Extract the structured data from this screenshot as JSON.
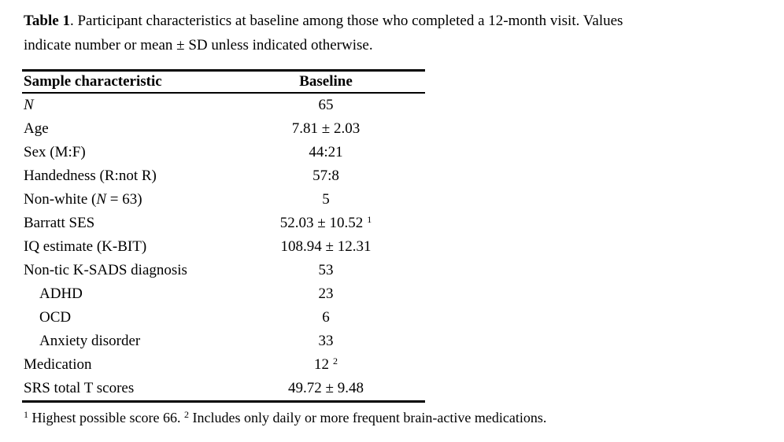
{
  "caption": {
    "label_bold": "Table 1",
    "line1_rest": ". Participant characteristics at baseline among those who completed a 12-month visit. Values",
    "line2": "indicate number or mean ± SD unless indicated otherwise."
  },
  "table": {
    "columns": {
      "characteristic": "Sample characteristic",
      "baseline": "Baseline"
    },
    "rows": [
      {
        "label": [
          {
            "t": "N",
            "i": true
          }
        ],
        "value": "65"
      },
      {
        "label": [
          {
            "t": "Age"
          }
        ],
        "value": "7.81 ± 2.03"
      },
      {
        "label": [
          {
            "t": "Sex (M:F)"
          }
        ],
        "value": "44:21"
      },
      {
        "label": [
          {
            "t": "Handedness (R:not R)"
          }
        ],
        "value": "57:8"
      },
      {
        "label": [
          {
            "t": "Non-white ("
          },
          {
            "t": "N",
            "i": true
          },
          {
            "t": " = 63)"
          }
        ],
        "value": "5"
      },
      {
        "label": [
          {
            "t": "Barratt SES"
          }
        ],
        "value": "52.03 ± 10.52",
        "value_sup": "1"
      },
      {
        "label": [
          {
            "t": "IQ estimate (K-BIT)"
          }
        ],
        "value": "108.94 ± 12.31"
      },
      {
        "label": [
          {
            "t": "Non-tic K-SADS diagnosis"
          }
        ],
        "value": "53"
      },
      {
        "label": [
          {
            "t": "ADHD"
          }
        ],
        "value": "23",
        "indent": true
      },
      {
        "label": [
          {
            "t": "OCD"
          }
        ],
        "value": "6",
        "indent": true
      },
      {
        "label": [
          {
            "t": "Anxiety disorder"
          }
        ],
        "value": "33",
        "indent": true
      },
      {
        "label": [
          {
            "t": "Medication"
          }
        ],
        "value": "12",
        "value_sup": "2"
      },
      {
        "label": [
          {
            "t": "SRS total T scores"
          }
        ],
        "value": "49.72 ± 9.48"
      }
    ]
  },
  "footnote": {
    "parts": [
      {
        "t": "1",
        "sup": true
      },
      {
        "t": " Highest possible score 66. "
      },
      {
        "t": "2",
        "sup": true
      },
      {
        "t": " Includes only daily or more frequent brain-active medications."
      }
    ]
  }
}
